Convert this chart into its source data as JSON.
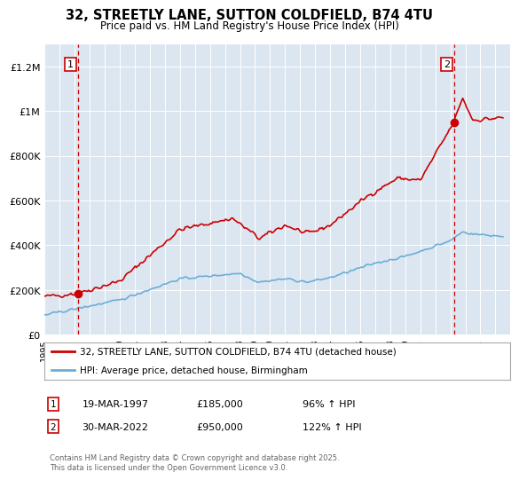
{
  "title_line1": "32, STREETLY LANE, SUTTON COLDFIELD, B74 4TU",
  "title_line2": "Price paid vs. HM Land Registry's House Price Index (HPI)",
  "legend_label_red": "32, STREETLY LANE, SUTTON COLDFIELD, B74 4TU (detached house)",
  "legend_label_blue": "HPI: Average price, detached house, Birmingham",
  "annotation1_date": "19-MAR-1997",
  "annotation1_price": "£185,000",
  "annotation1_hpi": "96% ↑ HPI",
  "annotation2_date": "30-MAR-2022",
  "annotation2_price": "£950,000",
  "annotation2_hpi": "122% ↑ HPI",
  "footnote": "Contains HM Land Registry data © Crown copyright and database right 2025.\nThis data is licensed under the Open Government Licence v3.0.",
  "ylim": [
    0,
    1300000
  ],
  "yticks": [
    0,
    200000,
    400000,
    600000,
    800000,
    1000000,
    1200000
  ],
  "ytick_labels": [
    "£0",
    "£200K",
    "£400K",
    "£600K",
    "£800K",
    "£1M",
    "£1.2M"
  ],
  "fig_bg_color": "#ffffff",
  "plot_bg_color": "#dce6f1",
  "red_color": "#cc0000",
  "blue_color": "#6baed6",
  "grid_color": "#ffffff",
  "sale1_year": 1997.21,
  "sale1_price": 185000,
  "sale2_year": 2022.24,
  "sale2_price": 950000,
  "xmin": 1995,
  "xmax": 2026,
  "xtick_years": [
    1995,
    1996,
    1997,
    1998,
    1999,
    2000,
    2001,
    2002,
    2003,
    2004,
    2005,
    2006,
    2007,
    2008,
    2009,
    2010,
    2011,
    2012,
    2013,
    2014,
    2015,
    2016,
    2017,
    2018,
    2019,
    2020,
    2021,
    2022,
    2023,
    2024,
    2025
  ]
}
